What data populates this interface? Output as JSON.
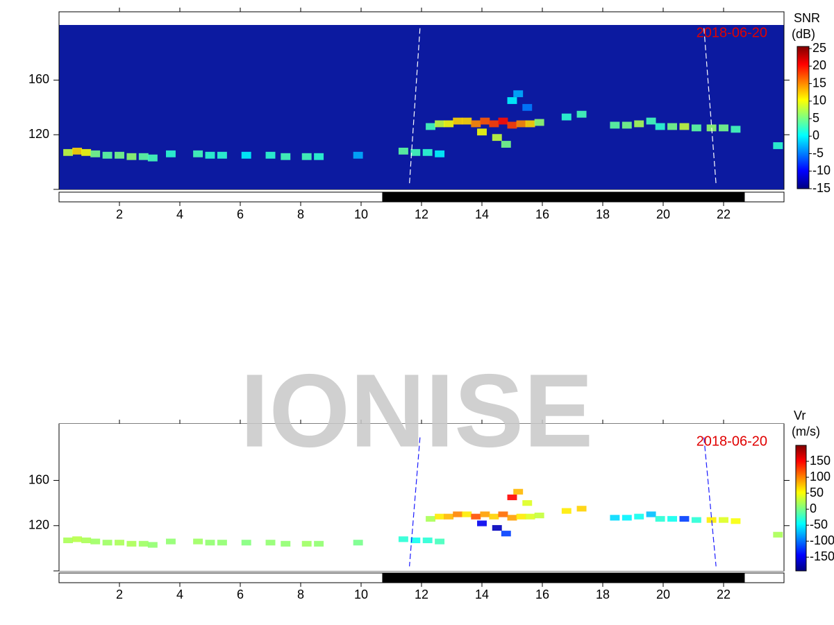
{
  "watermark": "IONISE",
  "chart_data": [
    {
      "type": "heatmap",
      "date": "2018-06-20",
      "colorbar_label": "SNR",
      "colorbar_unit": "(dB)",
      "background": "#0c1aa0",
      "colormap": "jet",
      "terminator_color": "#ffffff",
      "xlim": [
        0,
        24
      ],
      "xticks": [
        2,
        4,
        6,
        8,
        10,
        12,
        14,
        16,
        18,
        20,
        22
      ],
      "ylim": [
        80,
        210
      ],
      "yticks": [
        120,
        160
      ],
      "clim": [
        -15,
        25.6
      ],
      "cticks": [
        25,
        20,
        15,
        10,
        5,
        0,
        -5,
        -10,
        -15
      ],
      "dark_interval": [
        10.7,
        22.7
      ],
      "terminators": [
        {
          "x": [
            11.95,
            11.6
          ],
          "y": [
            198,
            84
          ]
        },
        {
          "x": [
            21.35,
            21.75
          ],
          "y": [
            198,
            84
          ]
        }
      ],
      "x": [
        0.3,
        0.6,
        0.9,
        1.2,
        1.6,
        2.0,
        2.4,
        2.8,
        3.1,
        3.7,
        4.6,
        5.0,
        5.4,
        6.2,
        7.0,
        7.5,
        8.2,
        8.6,
        9.9,
        11.4,
        11.8,
        12.2,
        12.6,
        12.3,
        12.6,
        12.9,
        13.2,
        13.5,
        13.8,
        14.1,
        14.4,
        14.7,
        15.0,
        15.3,
        15.6,
        15.9,
        14.0,
        14.5,
        14.8,
        15.0,
        15.2,
        15.5,
        16.8,
        17.3,
        18.4,
        18.8,
        19.2,
        19.6,
        19.9,
        20.3,
        20.7,
        21.1,
        21.6,
        22.0,
        22.4,
        23.8
      ],
      "y": [
        107,
        108,
        107,
        106,
        105,
        105,
        104,
        104,
        103,
        106,
        106,
        105,
        105,
        105,
        105,
        104,
        104,
        104,
        105,
        108,
        107,
        107,
        106,
        126,
        128,
        128,
        130,
        130,
        128,
        130,
        128,
        130,
        127,
        128,
        128,
        129,
        122,
        118,
        113,
        145,
        150,
        140,
        133,
        135,
        127,
        127,
        128,
        130,
        126,
        126,
        126,
        125,
        125,
        125,
        124,
        112
      ],
      "values": [
        8,
        12,
        10,
        5,
        4,
        5,
        6,
        4,
        3,
        2,
        3,
        2,
        2,
        0,
        2,
        3,
        3,
        2,
        -3,
        4,
        3,
        2,
        0,
        3,
        8,
        10,
        12,
        12,
        15,
        17,
        18,
        20,
        18,
        15,
        12,
        6,
        10,
        8,
        5,
        0,
        -3,
        -5,
        2,
        3,
        4,
        5,
        7,
        3,
        2,
        5,
        8,
        4,
        6,
        5,
        3,
        2
      ]
    },
    {
      "type": "heatmap",
      "date": "2018-06-20",
      "colorbar_label": "Vr",
      "colorbar_unit": "(m/s)",
      "background": "#ffffff",
      "colormap": "jet",
      "terminator_color": "#1a1aff",
      "xlim": [
        0,
        24
      ],
      "xticks": [
        2,
        4,
        6,
        8,
        10,
        12,
        14,
        16,
        18,
        20,
        22
      ],
      "ylim": [
        80,
        210
      ],
      "yticks": [
        120,
        160
      ],
      "clim": [
        -193,
        200
      ],
      "cticks": [
        150,
        100,
        50,
        0,
        -50,
        -100,
        -150
      ],
      "dark_interval": [
        10.7,
        22.7
      ],
      "terminators": [
        {
          "x": [
            11.95,
            11.6
          ],
          "y": [
            198,
            84
          ]
        },
        {
          "x": [
            21.35,
            21.75
          ],
          "y": [
            198,
            84
          ]
        }
      ],
      "x": [
        0.3,
        0.6,
        0.9,
        1.2,
        1.6,
        2.0,
        2.4,
        2.8,
        3.1,
        3.7,
        4.6,
        5.0,
        5.4,
        6.2,
        7.0,
        7.5,
        8.2,
        8.6,
        9.9,
        11.4,
        11.8,
        12.2,
        12.6,
        12.3,
        12.6,
        12.9,
        13.2,
        13.5,
        13.8,
        14.1,
        14.4,
        14.7,
        15.0,
        15.3,
        15.6,
        15.9,
        14.0,
        14.5,
        14.8,
        15.0,
        15.2,
        15.5,
        16.8,
        17.3,
        18.4,
        18.8,
        19.2,
        19.6,
        19.9,
        20.3,
        20.7,
        21.1,
        21.6,
        22.0,
        22.4,
        23.8
      ],
      "y": [
        107,
        108,
        107,
        106,
        105,
        105,
        104,
        104,
        103,
        106,
        106,
        105,
        105,
        105,
        105,
        104,
        104,
        104,
        105,
        108,
        107,
        107,
        106,
        126,
        128,
        128,
        130,
        130,
        128,
        130,
        128,
        130,
        127,
        128,
        128,
        129,
        122,
        118,
        113,
        145,
        150,
        140,
        133,
        135,
        127,
        127,
        128,
        130,
        126,
        126,
        126,
        125,
        125,
        125,
        124,
        112
      ],
      "values": [
        20,
        25,
        20,
        15,
        15,
        20,
        20,
        15,
        10,
        10,
        15,
        10,
        10,
        5,
        10,
        10,
        15,
        10,
        0,
        -30,
        -40,
        -30,
        -20,
        20,
        60,
        80,
        100,
        60,
        120,
        90,
        70,
        110,
        90,
        60,
        40,
        30,
        -150,
        -170,
        -120,
        150,
        80,
        40,
        60,
        70,
        -60,
        -50,
        -40,
        -70,
        -30,
        -40,
        -120,
        -30,
        60,
        40,
        50,
        20
      ]
    }
  ]
}
